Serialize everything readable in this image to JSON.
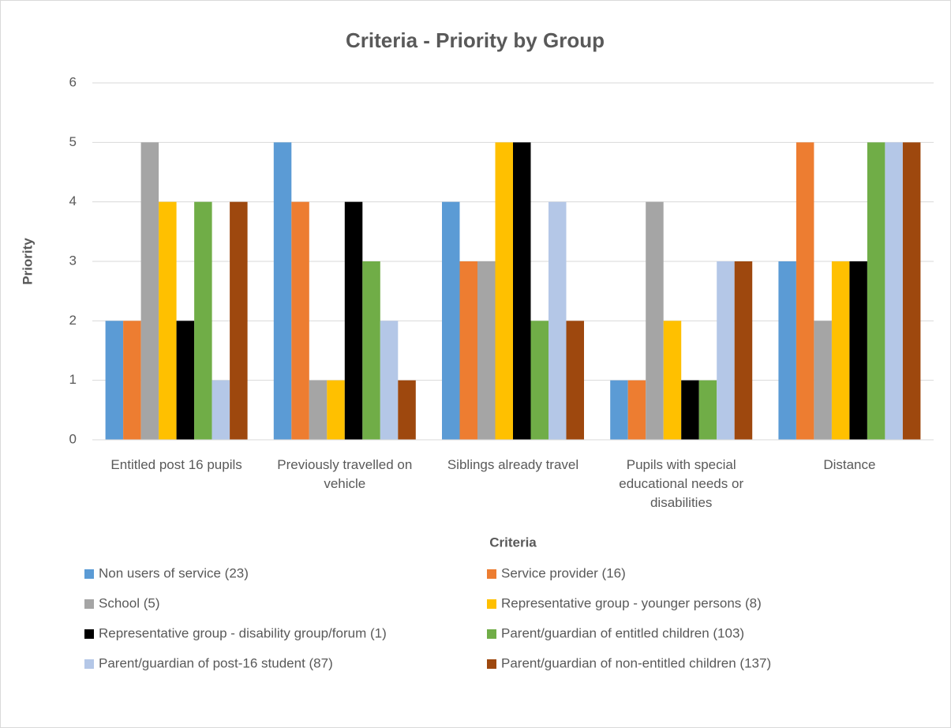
{
  "chart_data": {
    "type": "bar",
    "title": "Criteria - Priority by Group",
    "x_label": "Criteria",
    "y_label": "Priority",
    "categories": [
      "Entitled post 16 pupils",
      "Previously travelled on vehicle",
      "Siblings already travel",
      "Pupils with special educational needs or disabilities",
      "Distance"
    ],
    "series": [
      {
        "name": "Non users of service (23)",
        "color": "#5b9bd5",
        "values": [
          2,
          5,
          4,
          1,
          3
        ]
      },
      {
        "name": "Service provider (16)",
        "color": "#ed7d31",
        "values": [
          2,
          4,
          3,
          1,
          5
        ]
      },
      {
        "name": "School (5)",
        "color": "#a5a5a5",
        "values": [
          5,
          1,
          3,
          4,
          2
        ]
      },
      {
        "name": "Representative group - younger persons (8)",
        "color": "#ffc000",
        "values": [
          4,
          1,
          5,
          2,
          3
        ]
      },
      {
        "name": "Representative group - disability group/forum (1)",
        "color": "#000000",
        "values": [
          2,
          4,
          5,
          1,
          3
        ]
      },
      {
        "name": "Parent/guardian of entitled children (103)",
        "color": "#70ad47",
        "values": [
          4,
          3,
          2,
          1,
          5
        ]
      },
      {
        "name": "Parent/guardian of post-16 student (87)",
        "color": "#b4c7e7",
        "values": [
          1,
          2,
          4,
          3,
          5
        ]
      },
      {
        "name": "Parent/guardian of non-entitled children (137)",
        "color": "#9e480e",
        "values": [
          4,
          1,
          2,
          3,
          5
        ]
      }
    ],
    "ylim": [
      0,
      6
    ],
    "yticks": [
      0,
      1,
      2,
      3,
      4,
      5,
      6
    ],
    "grid": true
  }
}
